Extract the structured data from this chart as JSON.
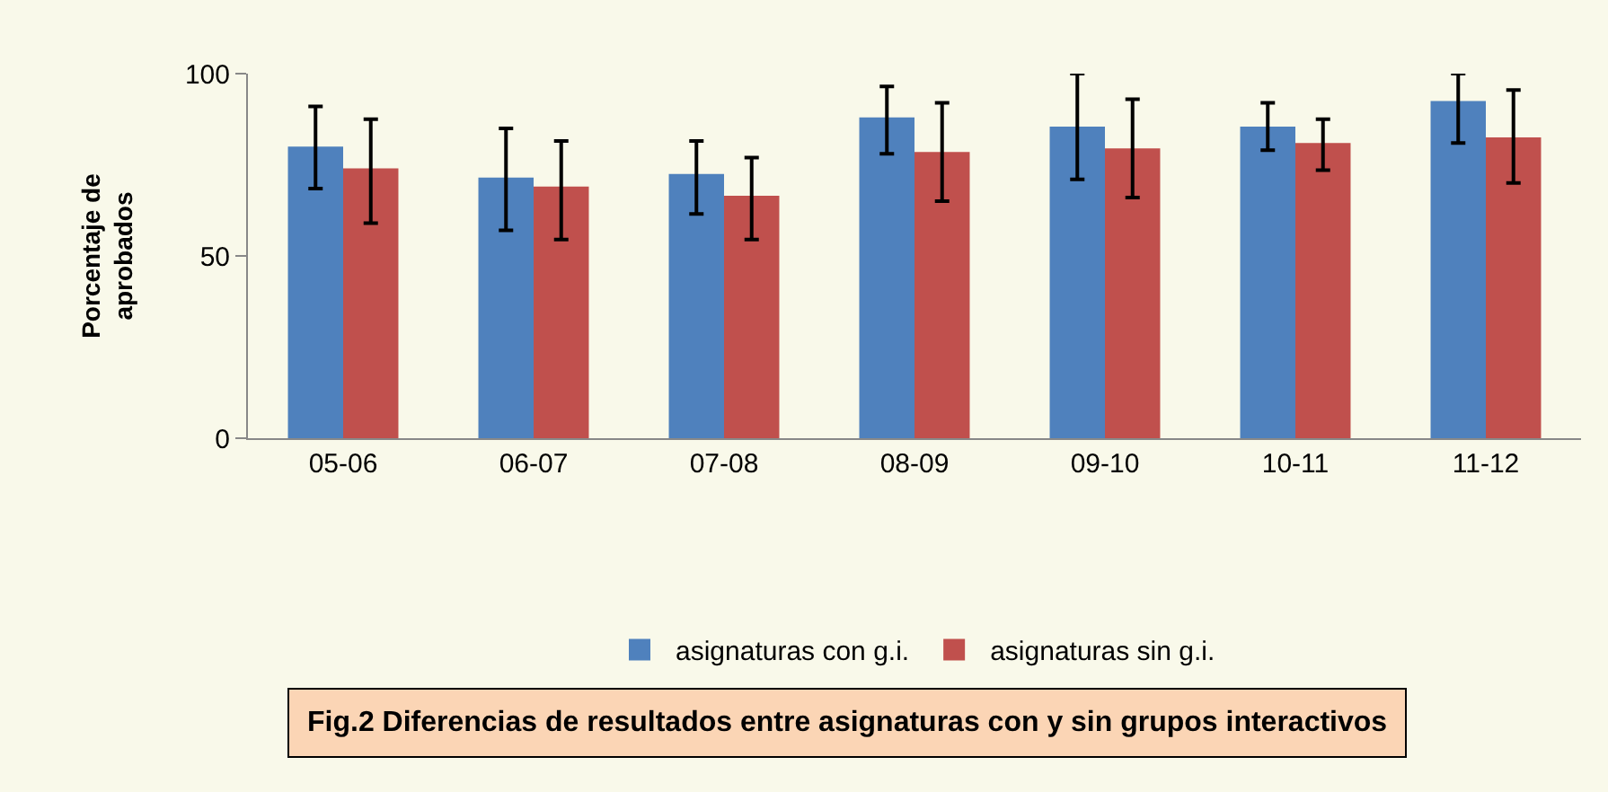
{
  "chart_data": {
    "type": "bar",
    "title": "Fig.2 Diferencias de resultados entre asignaturas con y sin grupos interactivos",
    "ylabel": "Porcentaje de\naprobados",
    "categories": [
      "05-06",
      "06-07",
      "07-08",
      "08-09",
      "09-10",
      "10-11",
      "11-12"
    ],
    "series": [
      {
        "name": "asignaturas con g.i.",
        "color": "#4f81bd",
        "values": [
          80,
          71.5,
          72.5,
          88,
          85.5,
          85.5,
          92.5
        ],
        "errors": [
          [
            68.5,
            91
          ],
          [
            57,
            85
          ],
          [
            61.5,
            81.5
          ],
          [
            78,
            96.5
          ],
          [
            71,
            100
          ],
          [
            79,
            92
          ],
          [
            81,
            100
          ]
        ]
      },
      {
        "name": "asignaturas sin g.i.",
        "color": "#c0504d",
        "values": [
          74,
          69,
          66.5,
          78.5,
          79.5,
          81,
          82.5
        ],
        "errors": [
          [
            59,
            87.5
          ],
          [
            54.5,
            81.5
          ],
          [
            54.5,
            77
          ],
          [
            65,
            92
          ],
          [
            66,
            93
          ],
          [
            73.5,
            87.5
          ],
          [
            70,
            95.5
          ]
        ]
      }
    ],
    "ylim": [
      0,
      100
    ],
    "yticks": [
      0,
      50,
      100
    ],
    "grid": false,
    "legend": "bottom"
  }
}
